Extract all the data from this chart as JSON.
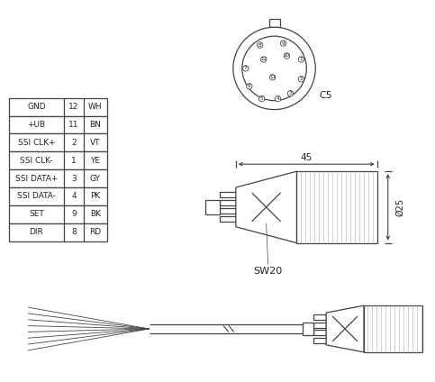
{
  "background_color": "#ffffff",
  "table_data": [
    [
      "GND",
      "12",
      "WH"
    ],
    [
      "+UB",
      "11",
      "BN"
    ],
    [
      "SSI CLK+",
      "2",
      "VT"
    ],
    [
      "SSI CLK-",
      "1",
      "YE"
    ],
    [
      "SSI DATA+",
      "3",
      "GY"
    ],
    [
      "SSI DATA-",
      "4",
      "PK"
    ],
    [
      "SET",
      "9",
      "BK"
    ],
    [
      "DIR",
      "8",
      "RD"
    ]
  ],
  "c5_label": "C5",
  "sw20_label": "SW20",
  "dim_45": "45",
  "dim_25": "Ø25",
  "line_color": "#444444",
  "text_color": "#222222",
  "gray_color": "#aaaaaa"
}
